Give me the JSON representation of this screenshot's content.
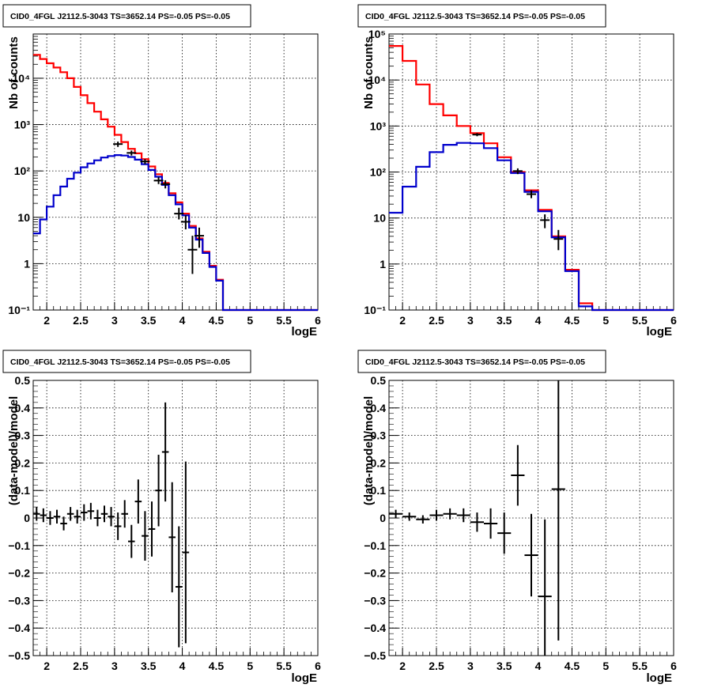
{
  "chart_data": [
    {
      "type": "histogram",
      "title": "CID0_4FGL J2112.5-3043 TS=3652.14 PS=-0.05 PS=-0.05",
      "xlabel": "logE",
      "ylabel": "Nb of counts",
      "xlim": [
        1.8,
        6.0
      ],
      "ylim": [
        0.1,
        90000
      ],
      "yscale": "log",
      "grid": true,
      "x_ticks": [
        "2",
        "2.5",
        "3",
        "3.5",
        "4",
        "4.5",
        "5",
        "5.5",
        "6"
      ],
      "y_ticks": [
        "10⁻¹",
        "1",
        "10",
        "10²",
        "10³",
        "10⁴"
      ],
      "series": [
        {
          "color": "#ff0000",
          "bin_edges": [
            1.8,
            1.9,
            2.0,
            2.1,
            2.2,
            2.3,
            2.4,
            2.5,
            2.6,
            2.7,
            2.8,
            2.9,
            3.0,
            3.1,
            3.2,
            3.3,
            3.4,
            3.5,
            3.6,
            3.7,
            3.8,
            3.9,
            4.0,
            4.1,
            4.2,
            4.3,
            4.4,
            4.5,
            4.6,
            4.7,
            4.8,
            4.9,
            5.0,
            5.1,
            5.2,
            5.3,
            5.4,
            5.5,
            5.6,
            5.7,
            5.8,
            5.9,
            6.0
          ],
          "values": [
            32000,
            26000,
            21000,
            17000,
            13500,
            10000,
            6500,
            4300,
            2900,
            1900,
            1300,
            900,
            600,
            420,
            300,
            240,
            180,
            125,
            85,
            55,
            33,
            21,
            12,
            6.5,
            3.5,
            1.8,
            0.9,
            0.45,
            0.1,
            0.1,
            0.1,
            0.1,
            0.1,
            0.1,
            0.1,
            0.1,
            0.1,
            0.1,
            0.1,
            0.1,
            0.1,
            0.1
          ]
        },
        {
          "color": "#0000cc",
          "bin_edges": [
            1.8,
            1.9,
            2.0,
            2.1,
            2.2,
            2.3,
            2.4,
            2.5,
            2.6,
            2.7,
            2.8,
            2.9,
            3.0,
            3.1,
            3.2,
            3.3,
            3.4,
            3.5,
            3.6,
            3.7,
            3.8,
            3.9,
            4.0,
            4.1,
            4.2,
            4.3,
            4.4,
            4.5,
            4.6,
            4.7,
            4.8,
            4.9,
            5.0,
            5.1,
            5.2,
            5.3,
            5.4,
            5.5,
            5.6,
            5.7,
            5.8,
            5.9,
            6.0
          ],
          "values": [
            4.5,
            9,
            17,
            30,
            46,
            68,
            92,
            120,
            145,
            170,
            195,
            210,
            220,
            215,
            200,
            175,
            140,
            105,
            75,
            50,
            30,
            19,
            11,
            6,
            3.3,
            1.7,
            0.85,
            0.43,
            0.1,
            0.1,
            0.1,
            0.1,
            0.1,
            0.1,
            0.1,
            0.1,
            0.1,
            0.1,
            0.1,
            0.1,
            0.1,
            0.1
          ]
        }
      ],
      "data_points": [
        {
          "x": 3.05,
          "y": 380,
          "err": [
            330,
            430
          ]
        },
        {
          "x": 3.25,
          "y": 245,
          "err": [
            215,
            275
          ]
        },
        {
          "x": 3.45,
          "y": 160,
          "err": [
            140,
            180
          ]
        },
        {
          "x": 3.65,
          "y": 62,
          "err": [
            52,
            74
          ]
        },
        {
          "x": 3.75,
          "y": 52,
          "err": [
            42,
            63
          ]
        },
        {
          "x": 3.95,
          "y": 12,
          "err": [
            9,
            16
          ]
        },
        {
          "x": 4.05,
          "y": 8,
          "err": [
            5.5,
            11
          ]
        },
        {
          "x": 4.15,
          "y": 2,
          "err": [
            0.6,
            4
          ]
        },
        {
          "x": 4.25,
          "y": 4,
          "err": [
            2.2,
            6
          ]
        }
      ]
    },
    {
      "type": "histogram",
      "title": "CID0_4FGL J2112.5-3043 TS=3652.14 PS=-0.05 PS=-0.05",
      "xlabel": "logE",
      "ylabel": "Nb of counts",
      "xlim": [
        1.8,
        6.0
      ],
      "ylim": [
        0.1,
        100000
      ],
      "yscale": "log",
      "grid": true,
      "x_ticks": [
        "2",
        "2.5",
        "3",
        "3.5",
        "4",
        "4.5",
        "5",
        "5.5",
        "6"
      ],
      "y_ticks": [
        "10⁻¹",
        "1",
        "10",
        "10²",
        "10³",
        "10⁴",
        "10⁵"
      ],
      "series": [
        {
          "color": "#ff0000",
          "bin_edges": [
            1.8,
            2.0,
            2.2,
            2.4,
            2.6,
            2.8,
            3.0,
            3.2,
            3.4,
            3.6,
            3.8,
            4.0,
            4.2,
            4.4,
            4.6,
            4.8,
            5.0,
            5.2,
            5.4,
            5.6,
            5.8,
            6.0
          ],
          "values": [
            55000,
            26000,
            8000,
            3000,
            1700,
            1000,
            700,
            420,
            210,
            100,
            40,
            15,
            4,
            0.75,
            0.14,
            0.1,
            0.1,
            0.1,
            0.1,
            0.1,
            0.1
          ]
        },
        {
          "color": "#0000cc",
          "bin_edges": [
            1.8,
            2.0,
            2.2,
            2.4,
            2.6,
            2.8,
            3.0,
            3.2,
            3.4,
            3.6,
            3.8,
            4.0,
            4.2,
            4.4,
            4.6,
            4.8,
            5.0,
            5.2,
            5.4,
            5.6,
            5.8,
            6.0
          ],
          "values": [
            13,
            48,
            130,
            270,
            390,
            430,
            420,
            330,
            180,
            95,
            37,
            14,
            3.8,
            0.7,
            0.12,
            0.1,
            0.1,
            0.1,
            0.1,
            0.1,
            0.1
          ]
        }
      ],
      "data_points": [
        {
          "x": 3.1,
          "y": 650,
          "err": [
            600,
            700
          ]
        },
        {
          "x": 3.7,
          "y": 105,
          "err": [
            90,
            120
          ]
        },
        {
          "x": 3.9,
          "y": 33,
          "err": [
            27,
            40
          ]
        },
        {
          "x": 4.1,
          "y": 9,
          "err": [
            6,
            12
          ]
        },
        {
          "x": 4.3,
          "y": 3.5,
          "err": [
            2,
            5.5
          ]
        }
      ]
    },
    {
      "type": "scatter",
      "title": "CID0_4FGL J2112.5-3043 TS=3652.14 PS=-0.05 PS=-0.05",
      "xlabel": "logE",
      "ylabel": "(data-model)/model",
      "xlim": [
        1.8,
        6.0
      ],
      "ylim": [
        -0.5,
        0.5
      ],
      "grid": true,
      "x_ticks": [
        "2",
        "2.5",
        "3",
        "3.5",
        "4",
        "4.5",
        "5",
        "5.5",
        "6"
      ],
      "y_ticks": [
        "−0.5",
        "−0.4",
        "−0.3",
        "−0.2",
        "−0.1",
        "0",
        "0.1",
        "0.2",
        "0.3",
        "0.4",
        "0.5"
      ],
      "points": [
        {
          "x": 1.85,
          "y": 0.015,
          "yerr": 0.025,
          "xw": 0.05
        },
        {
          "x": 1.95,
          "y": 0.01,
          "yerr": 0.025,
          "xw": 0.05
        },
        {
          "x": 2.05,
          "y": 0.0,
          "yerr": 0.025,
          "xw": 0.05
        },
        {
          "x": 2.15,
          "y": 0.005,
          "yerr": 0.025,
          "xw": 0.05
        },
        {
          "x": 2.25,
          "y": -0.02,
          "yerr": 0.025,
          "xw": 0.05
        },
        {
          "x": 2.35,
          "y": 0.015,
          "yerr": 0.025,
          "xw": 0.05
        },
        {
          "x": 2.45,
          "y": 0.005,
          "yerr": 0.025,
          "xw": 0.05
        },
        {
          "x": 2.55,
          "y": 0.02,
          "yerr": 0.03,
          "xw": 0.05
        },
        {
          "x": 2.65,
          "y": 0.025,
          "yerr": 0.03,
          "xw": 0.05
        },
        {
          "x": 2.75,
          "y": 0.0,
          "yerr": 0.03,
          "xw": 0.05
        },
        {
          "x": 2.85,
          "y": 0.015,
          "yerr": 0.03,
          "xw": 0.05
        },
        {
          "x": 2.95,
          "y": 0.005,
          "yerr": 0.035,
          "xw": 0.05
        },
        {
          "x": 3.05,
          "y": -0.03,
          "yerr": 0.05,
          "xw": 0.05
        },
        {
          "x": 3.15,
          "y": 0.015,
          "yerr": 0.05,
          "xw": 0.05
        },
        {
          "x": 3.25,
          "y": -0.085,
          "yerr": 0.06,
          "xw": 0.05
        },
        {
          "x": 3.35,
          "y": 0.06,
          "yerr": 0.08,
          "xw": 0.05
        },
        {
          "x": 3.45,
          "y": -0.065,
          "yerr": 0.09,
          "xw": 0.05
        },
        {
          "x": 3.55,
          "y": -0.04,
          "yerr": 0.1,
          "xw": 0.05
        },
        {
          "x": 3.65,
          "y": 0.1,
          "yerr": 0.13,
          "xw": 0.05
        },
        {
          "x": 3.75,
          "y": 0.24,
          "yerr": 0.18,
          "xw": 0.05
        },
        {
          "x": 3.85,
          "y": -0.07,
          "yerr": 0.2,
          "xw": 0.05
        },
        {
          "x": 3.95,
          "y": -0.25,
          "yerr": 0.22,
          "xw": 0.05
        },
        {
          "x": 4.05,
          "y": -0.125,
          "yerr": 0.33,
          "xw": 0.05
        }
      ]
    },
    {
      "type": "scatter",
      "title": "CID0_4FGL J2112.5-3043 TS=3652.14 PS=-0.05 PS=-0.05",
      "xlabel": "logE",
      "ylabel": "(data-model)/model",
      "xlim": [
        1.8,
        6.0
      ],
      "ylim": [
        -0.5,
        0.5
      ],
      "grid": true,
      "x_ticks": [
        "2",
        "2.5",
        "3",
        "3.5",
        "4",
        "4.5",
        "5",
        "5.5",
        "6"
      ],
      "y_ticks": [
        "−0.5",
        "−0.4",
        "−0.3",
        "−0.2",
        "−0.1",
        "0",
        "0.1",
        "0.2",
        "0.3",
        "0.4",
        "0.5"
      ],
      "points": [
        {
          "x": 1.9,
          "y": 0.015,
          "yerr": 0.015,
          "xw": 0.1
        },
        {
          "x": 2.1,
          "y": 0.005,
          "yerr": 0.015,
          "xw": 0.1
        },
        {
          "x": 2.3,
          "y": -0.005,
          "yerr": 0.015,
          "xw": 0.1
        },
        {
          "x": 2.5,
          "y": 0.01,
          "yerr": 0.02,
          "xw": 0.1
        },
        {
          "x": 2.7,
          "y": 0.015,
          "yerr": 0.02,
          "xw": 0.1
        },
        {
          "x": 2.9,
          "y": 0.01,
          "yerr": 0.025,
          "xw": 0.1
        },
        {
          "x": 3.1,
          "y": -0.015,
          "yerr": 0.035,
          "xw": 0.1
        },
        {
          "x": 3.3,
          "y": -0.02,
          "yerr": 0.055,
          "xw": 0.1
        },
        {
          "x": 3.5,
          "y": -0.055,
          "yerr": 0.075,
          "xw": 0.1
        },
        {
          "x": 3.7,
          "y": 0.155,
          "yerr": 0.11,
          "xw": 0.1
        },
        {
          "x": 3.9,
          "y": -0.135,
          "yerr": 0.15,
          "xw": 0.1
        },
        {
          "x": 4.1,
          "y": -0.285,
          "yerr": 0.28,
          "xw": 0.1
        },
        {
          "x": 4.3,
          "y": 0.105,
          "yerr": 0.55,
          "xw": 0.1
        }
      ]
    }
  ]
}
